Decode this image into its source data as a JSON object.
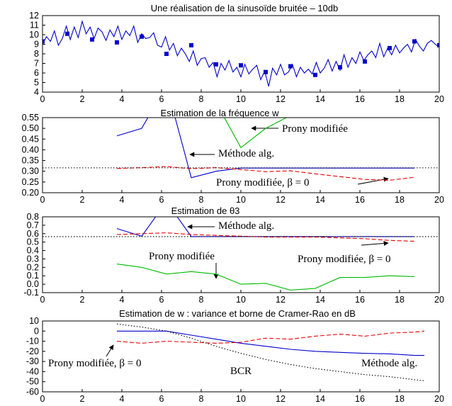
{
  "chart_data": [
    {
      "type": "line",
      "title": "Une réalisation de la sinusoïde bruitée – 10db",
      "xlim": [
        0,
        20
      ],
      "ylim": [
        4,
        12
      ],
      "xticks": [
        0,
        2,
        4,
        6,
        8,
        10,
        12,
        14,
        16,
        18,
        20
      ],
      "yticks": [
        4,
        5,
        6,
        7,
        8,
        9,
        10,
        11,
        12
      ],
      "series": [
        {
          "color": "#0000cc",
          "style": "solid",
          "x": [
            0,
            0.2,
            0.4,
            0.6,
            0.8,
            1,
            1.2,
            1.4,
            1.6,
            1.8,
            2,
            2.2,
            2.4,
            2.6,
            2.8,
            3,
            3.2,
            3.4,
            3.6,
            3.8,
            4,
            4.2,
            4.4,
            4.6,
            4.8,
            5,
            5.2,
            5.4,
            5.6,
            5.8,
            6,
            6.2,
            6.4,
            6.6,
            6.8,
            7,
            7.2,
            7.4,
            7.6,
            7.8,
            8,
            8.2,
            8.4,
            8.6,
            8.8,
            9,
            9.2,
            9.4,
            9.6,
            9.8,
            10,
            10.2,
            10.4,
            10.6,
            10.8,
            11,
            11.2,
            11.4,
            11.6,
            11.8,
            12,
            12.2,
            12.4,
            12.6,
            12.8,
            13,
            13.2,
            13.4,
            13.6,
            13.8,
            14,
            14.2,
            14.4,
            14.6,
            14.8,
            15,
            15.2,
            15.4,
            15.6,
            15.8,
            16,
            16.2,
            16.4,
            16.6,
            16.8,
            17,
            17.2,
            17.4,
            17.6,
            17.8,
            18,
            18.2,
            18.4,
            18.6,
            18.8,
            19,
            19.2,
            19.4,
            19.6,
            19.8,
            20
          ],
          "y": [
            9.0,
            9.8,
            9.3,
            10.4,
            8.9,
            9.6,
            10.9,
            9.5,
            10.8,
            9.7,
            11.4,
            10.1,
            10.8,
            9.6,
            10.7,
            10.3,
            9.4,
            10.5,
            9.8,
            10.9,
            9.5,
            10.4,
            9.9,
            10.9,
            9.2,
            10.1,
            9.6,
            9.7,
            10.2,
            8.9,
            8.7,
            9.8,
            8.4,
            9.1,
            7.8,
            8.6,
            8.0,
            7.2,
            8.3,
            6.8,
            7.5,
            7.6,
            6.6,
            7.1,
            5.6,
            7.0,
            6.3,
            7.3,
            6.1,
            6.6,
            5.6,
            6.9,
            5.9,
            6.4,
            6.8,
            5.3,
            6.2,
            4.6,
            6.5,
            5.8,
            6.9,
            5.8,
            6.1,
            6.9,
            5.6,
            6.6,
            6.0,
            6.4,
            5.9,
            7.1,
            6.0,
            6.5,
            7.4,
            6.2,
            7.2,
            6.3,
            7.9,
            6.6,
            7.6,
            7.0,
            8.2,
            7.3,
            7.9,
            8.3,
            7.6,
            9.1,
            7.7,
            8.6,
            7.9,
            8.9,
            8.1,
            8.6,
            9.0,
            8.2,
            9.5,
            8.8,
            8.3,
            9.1,
            9.4,
            9.0,
            8.7
          ]
        },
        {
          "color": "#0000cc",
          "style": "markers",
          "x": [
            0,
            1.25,
            2.5,
            3.75,
            5,
            6.25,
            7.5,
            8.75,
            10,
            11.25,
            12.5,
            13.75,
            15,
            16.25,
            17.5,
            18.75,
            20
          ],
          "y": [
            9.3,
            10.1,
            9.5,
            9.2,
            9.8,
            8.0,
            8.9,
            6.9,
            6.8,
            6.1,
            6.7,
            5.8,
            6.6,
            7.2,
            8.6,
            9.3,
            8.9
          ]
        }
      ]
    },
    {
      "type": "line",
      "title": "Estimation de la fréquence w",
      "xlim": [
        0,
        20
      ],
      "ylim": [
        0.2,
        0.55
      ],
      "xticks": [
        0,
        2,
        4,
        6,
        8,
        10,
        12,
        14,
        16,
        18,
        20
      ],
      "yticks": [
        "0.20",
        "0.25",
        "0.30",
        "0.35",
        "0.40",
        "0.45",
        "0.50",
        "0.55"
      ],
      "series": [
        {
          "color": "#0000cc",
          "style": "solid",
          "x": [
            3.75,
            5,
            6.25,
            7.5,
            8.75,
            10,
            11.25,
            12.5,
            13.75,
            15,
            16.25,
            17.5,
            18.75
          ],
          "y": [
            0.465,
            0.5,
            0.7,
            0.27,
            0.3,
            0.315,
            0.315,
            0.315,
            0.315,
            0.315,
            0.315,
            0.315,
            0.315
          ]
        },
        {
          "color": "#ee0000",
          "style": "dashed",
          "x": [
            3.75,
            5,
            6.25,
            7.5,
            8.75,
            10,
            11.25,
            12.5,
            13.75,
            15,
            16.25,
            17.5,
            18.75
          ],
          "y": [
            0.313,
            0.317,
            0.322,
            0.312,
            0.317,
            0.308,
            0.298,
            0.302,
            0.288,
            0.275,
            0.262,
            0.258,
            0.272
          ]
        },
        {
          "color": "#00bb00",
          "style": "solid",
          "x": [
            8.75,
            10,
            11.25,
            12.5
          ],
          "y": [
            0.62,
            0.41,
            0.5,
            0.56
          ]
        },
        {
          "color": "#000000",
          "style": "dotted",
          "x": [
            0,
            20
          ],
          "y": [
            0.316,
            0.316
          ]
        }
      ],
      "annotations": [
        {
          "text": "Prony modifiée",
          "color": "#000000"
        },
        {
          "text": "Méthode alg.",
          "color": "#000000"
        },
        {
          "text": "Prony modifiée, β = 0",
          "color": "#000000"
        }
      ]
    },
    {
      "type": "line",
      "title": "Estimation de θ3",
      "xlim": [
        0,
        20
      ],
      "ylim": [
        -0.1,
        0.8
      ],
      "xticks": [
        0,
        2,
        4,
        6,
        8,
        10,
        12,
        14,
        16,
        18,
        20
      ],
      "yticks": [
        "-0.1",
        "0.0",
        "0.1",
        "0.2",
        "0.3",
        "0.4",
        "0.5",
        "0.6",
        "0.7",
        "0.8"
      ],
      "series": [
        {
          "color": "#0000cc",
          "style": "solid",
          "x": [
            3.75,
            5,
            6.25,
            7.5,
            8.75,
            10,
            11.25,
            12.5,
            13.75,
            15,
            16.25,
            17.5,
            18.75
          ],
          "y": [
            0.66,
            0.57,
            0.98,
            0.565,
            0.565,
            0.565,
            0.565,
            0.565,
            0.565,
            0.565,
            0.565,
            0.565,
            0.565
          ]
        },
        {
          "color": "#ee0000",
          "style": "dashed",
          "x": [
            3.75,
            5,
            6.25,
            7.5,
            8.75,
            10,
            11.25,
            12.5,
            13.75,
            15,
            16.25,
            17.5,
            18.75
          ],
          "y": [
            0.59,
            0.6,
            0.61,
            0.59,
            0.58,
            0.57,
            0.56,
            0.56,
            0.56,
            0.55,
            0.54,
            0.52,
            0.51
          ]
        },
        {
          "color": "#00bb00",
          "style": "solid",
          "x": [
            3.75,
            5,
            6.25,
            7.5,
            8.75,
            10,
            11.25,
            12.5,
            13.75,
            15,
            16.25,
            17.5,
            18.75
          ],
          "y": [
            0.24,
            0.2,
            0.12,
            0.15,
            0.12,
            0.0,
            0.01,
            -0.07,
            -0.05,
            0.08,
            0.08,
            0.1,
            0.09
          ]
        },
        {
          "color": "#000000",
          "style": "dotted",
          "x": [
            0,
            20
          ],
          "y": [
            0.565,
            0.565
          ]
        }
      ],
      "annotations": [
        {
          "text": "Méthode alg.",
          "color": "#000000"
        },
        {
          "text": "Prony modifiée",
          "color": "#000000"
        },
        {
          "text": "Prony modifiée, β = 0",
          "color": "#000000"
        }
      ]
    },
    {
      "type": "line",
      "title": "Estimation de w : variance et borne de Cramer-Rao en dB",
      "xlim": [
        0,
        20
      ],
      "ylim": [
        -60,
        10
      ],
      "xticks": [
        0,
        2,
        4,
        6,
        8,
        10,
        12,
        14,
        16,
        18,
        20
      ],
      "yticks": [
        -60,
        -50,
        -40,
        -30,
        -20,
        -10,
        0,
        10
      ],
      "series": [
        {
          "color": "#0000cc",
          "style": "solid",
          "x": [
            3.75,
            5,
            6.25,
            7.5,
            8.75,
            10,
            11.25,
            12.5,
            13.75,
            15,
            16.25,
            17.5,
            18.75,
            19.25
          ],
          "y": [
            0,
            0,
            0,
            -4,
            -8,
            -12,
            -15,
            -18,
            -20,
            -21,
            -22,
            -22.5,
            -24,
            -24
          ]
        },
        {
          "color": "#ee0000",
          "style": "dashed",
          "x": [
            3.75,
            5,
            6.25,
            7.5,
            8.75,
            10,
            11.25,
            12.5,
            13.75,
            15,
            16.25,
            17.5,
            18.75,
            19.25
          ],
          "y": [
            -10,
            -12,
            -10,
            -11,
            -12,
            -11,
            -7,
            -8,
            -5,
            -3,
            -5,
            -2,
            -1,
            0
          ]
        },
        {
          "color": "#000000",
          "style": "dotted",
          "x": [
            3.75,
            5,
            6.25,
            7.5,
            8.75,
            10,
            11.25,
            12.5,
            13.75,
            15,
            16.25,
            17.5,
            18.75,
            19.25
          ],
          "y": [
            7,
            4,
            0,
            -7,
            -15,
            -22,
            -28,
            -33,
            -37,
            -40,
            -43,
            -45,
            -48,
            -49
          ]
        }
      ],
      "annotations": [
        {
          "text": "Prony modifiée, β = 0",
          "color": "#000000"
        },
        {
          "text": "BCR",
          "color": "#000000"
        },
        {
          "text": "Méthode alg.",
          "color": "#000000"
        }
      ]
    }
  ]
}
